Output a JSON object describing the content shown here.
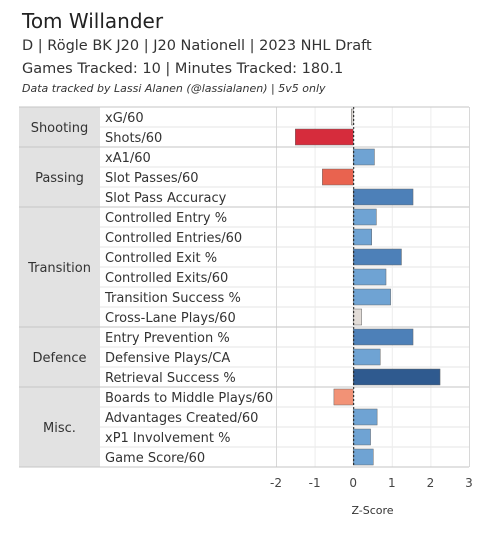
{
  "header": {
    "title": "Tom Willander",
    "subtitle": "D | Rögle BK J20 | J20 Nationell | 2023 NHL Draft",
    "tracked": "Games Tracked: 10 | Minutes Tracked: 180.1",
    "note": "Data tracked by Lassi Alanen (@lassialanen) | 5v5 only"
  },
  "chart_data": {
    "type": "bar",
    "orientation": "horizontal",
    "xlabel": "Z-Score",
    "xlim": [
      -2,
      3
    ],
    "xticks": [
      -2,
      -1,
      0,
      1,
      2,
      3
    ],
    "colors": {
      "strong_negative": "#d62c3c",
      "negative": "#e9634f",
      "mild_negative": "#f29276",
      "near_zero": "#e2dcd7",
      "mild_positive": "#6fa3d3",
      "positive": "#4d80b8",
      "strong_positive": "#2f5a8f",
      "group_fill": "#e2e2e2"
    },
    "groups": [
      {
        "name": "Shooting",
        "metrics": [
          {
            "label": "xG/60",
            "value": -0.05
          },
          {
            "label": "Shots/60",
            "value": -1.5
          }
        ]
      },
      {
        "name": "Passing",
        "metrics": [
          {
            "label": "xA1/60",
            "value": 0.55
          },
          {
            "label": "Slot Passes/60",
            "value": -0.8
          },
          {
            "label": "Slot Pass Accuracy",
            "value": 1.55
          }
        ]
      },
      {
        "name": "Transition",
        "metrics": [
          {
            "label": "Controlled Entry %",
            "value": 0.6
          },
          {
            "label": "Controlled Entries/60",
            "value": 0.48
          },
          {
            "label": "Controlled Exit %",
            "value": 1.25
          },
          {
            "label": "Controlled Exits/60",
            "value": 0.85
          },
          {
            "label": "Transition Success %",
            "value": 0.97
          },
          {
            "label": "Cross-Lane Plays/60",
            "value": 0.22
          }
        ]
      },
      {
        "name": "Defence",
        "metrics": [
          {
            "label": "Entry Prevention %",
            "value": 1.55
          },
          {
            "label": "Defensive Plays/CA",
            "value": 0.7
          },
          {
            "label": "Retrieval Success %",
            "value": 2.25
          }
        ]
      },
      {
        "name": "Misc.",
        "metrics": [
          {
            "label": "Boards to Middle Plays/60",
            "value": -0.5
          },
          {
            "label": "Advantages Created/60",
            "value": 0.62
          },
          {
            "label": "xP1 Involvement %",
            "value": 0.45
          },
          {
            "label": "Game Score/60",
            "value": 0.52
          }
        ]
      }
    ]
  }
}
